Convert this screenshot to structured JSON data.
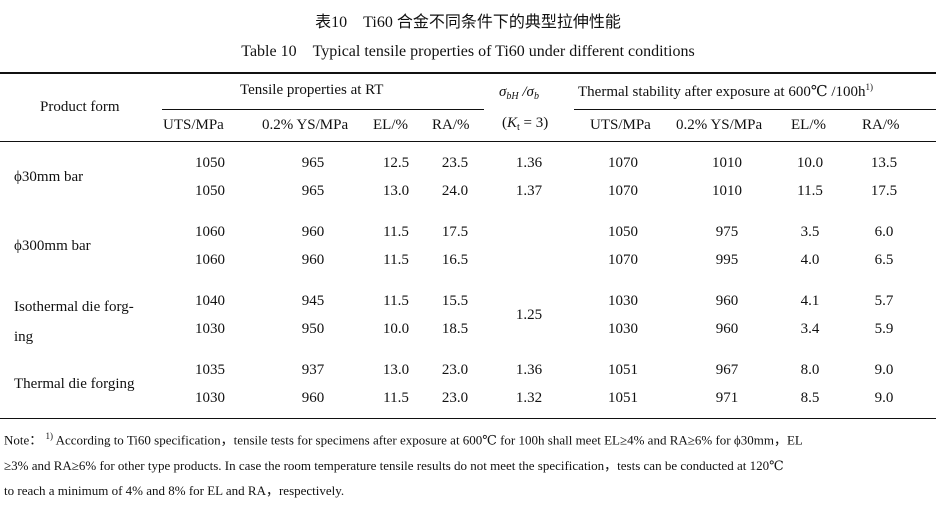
{
  "title_cn": "表10　Ti60 合金不同条件下的典型拉伸性能",
  "title_en": "Table 10　Typical tensile properties of Ti60 under different conditions",
  "headers": {
    "product_form": "Product form",
    "tensile_rt": "Tensile properties at RT",
    "ratio_main": "σbH/σb",
    "ratio_cond": "(Kt = 3)",
    "thermal": "Thermal stability after exposure at 600℃ /100h",
    "thermal_note_mark": "1)",
    "cols": [
      "UTS/MPa",
      "0.2% YS/MPa",
      "EL/%",
      "RA/%",
      "UTS/MPa",
      "0.2% YS/MPa",
      "EL/%",
      "RA/%"
    ]
  },
  "groups": [
    {
      "product": [
        "ϕ30mm bar"
      ],
      "rows": [
        {
          "uts": "1050",
          "ys": "965",
          "el": "12.5",
          "ra": "23.5",
          "ratio": "1.36",
          "t_uts": "1070",
          "t_ys": "1010",
          "t_el": "10.0",
          "t_ra": "13.5"
        },
        {
          "uts": "1050",
          "ys": "965",
          "el": "13.0",
          "ra": "24.0",
          "ratio": "1.37",
          "t_uts": "1070",
          "t_ys": "1010",
          "t_el": "11.5",
          "t_ra": "17.5"
        }
      ]
    },
    {
      "product": [
        "ϕ300mm bar"
      ],
      "rows": [
        {
          "uts": "1060",
          "ys": "960",
          "el": "11.5",
          "ra": "17.5",
          "ratio": "",
          "t_uts": "1050",
          "t_ys": "975",
          "t_el": "3.5",
          "t_ra": "6.0"
        },
        {
          "uts": "1060",
          "ys": "960",
          "el": "11.5",
          "ra": "16.5",
          "ratio": "",
          "t_uts": "1070",
          "t_ys": "995",
          "t_el": "4.0",
          "t_ra": "6.5"
        }
      ]
    },
    {
      "product": [
        "Isothermal die forg-",
        "ing"
      ],
      "merged_ratio": "1.25",
      "rows": [
        {
          "uts": "1040",
          "ys": "945",
          "el": "11.5",
          "ra": "15.5",
          "ratio": "",
          "t_uts": "1030",
          "t_ys": "960",
          "t_el": "4.1",
          "t_ra": "5.7"
        },
        {
          "uts": "1030",
          "ys": "950",
          "el": "10.0",
          "ra": "18.5",
          "ratio": "",
          "t_uts": "1030",
          "t_ys": "960",
          "t_el": "3.4",
          "t_ra": "5.9"
        }
      ]
    },
    {
      "product": [
        "Thermal die forging"
      ],
      "rows": [
        {
          "uts": "1035",
          "ys": "937",
          "el": "13.0",
          "ra": "23.0",
          "ratio": "1.36",
          "t_uts": "1051",
          "t_ys": "967",
          "t_el": "8.0",
          "t_ra": "9.0"
        },
        {
          "uts": "1030",
          "ys": "960",
          "el": "11.5",
          "ra": "23.0",
          "ratio": "1.32",
          "t_uts": "1051",
          "t_ys": "971",
          "t_el": "8.5",
          "t_ra": "9.0"
        }
      ]
    }
  ],
  "note": {
    "label": "Note：",
    "mark": "1)",
    "lines": [
      "According to Ti60 specification，tensile tests for specimens after exposure at 600℃ for 100h shall meet EL≥4% and RA≥6% for ϕ30mm，EL",
      "≥3% and RA≥6% for other type products. In case the room temperature tensile results do not meet the specification，tests can be conducted at 120℃",
      "to reach a minimum of 4% and 8% for EL and RA，respectively."
    ]
  }
}
